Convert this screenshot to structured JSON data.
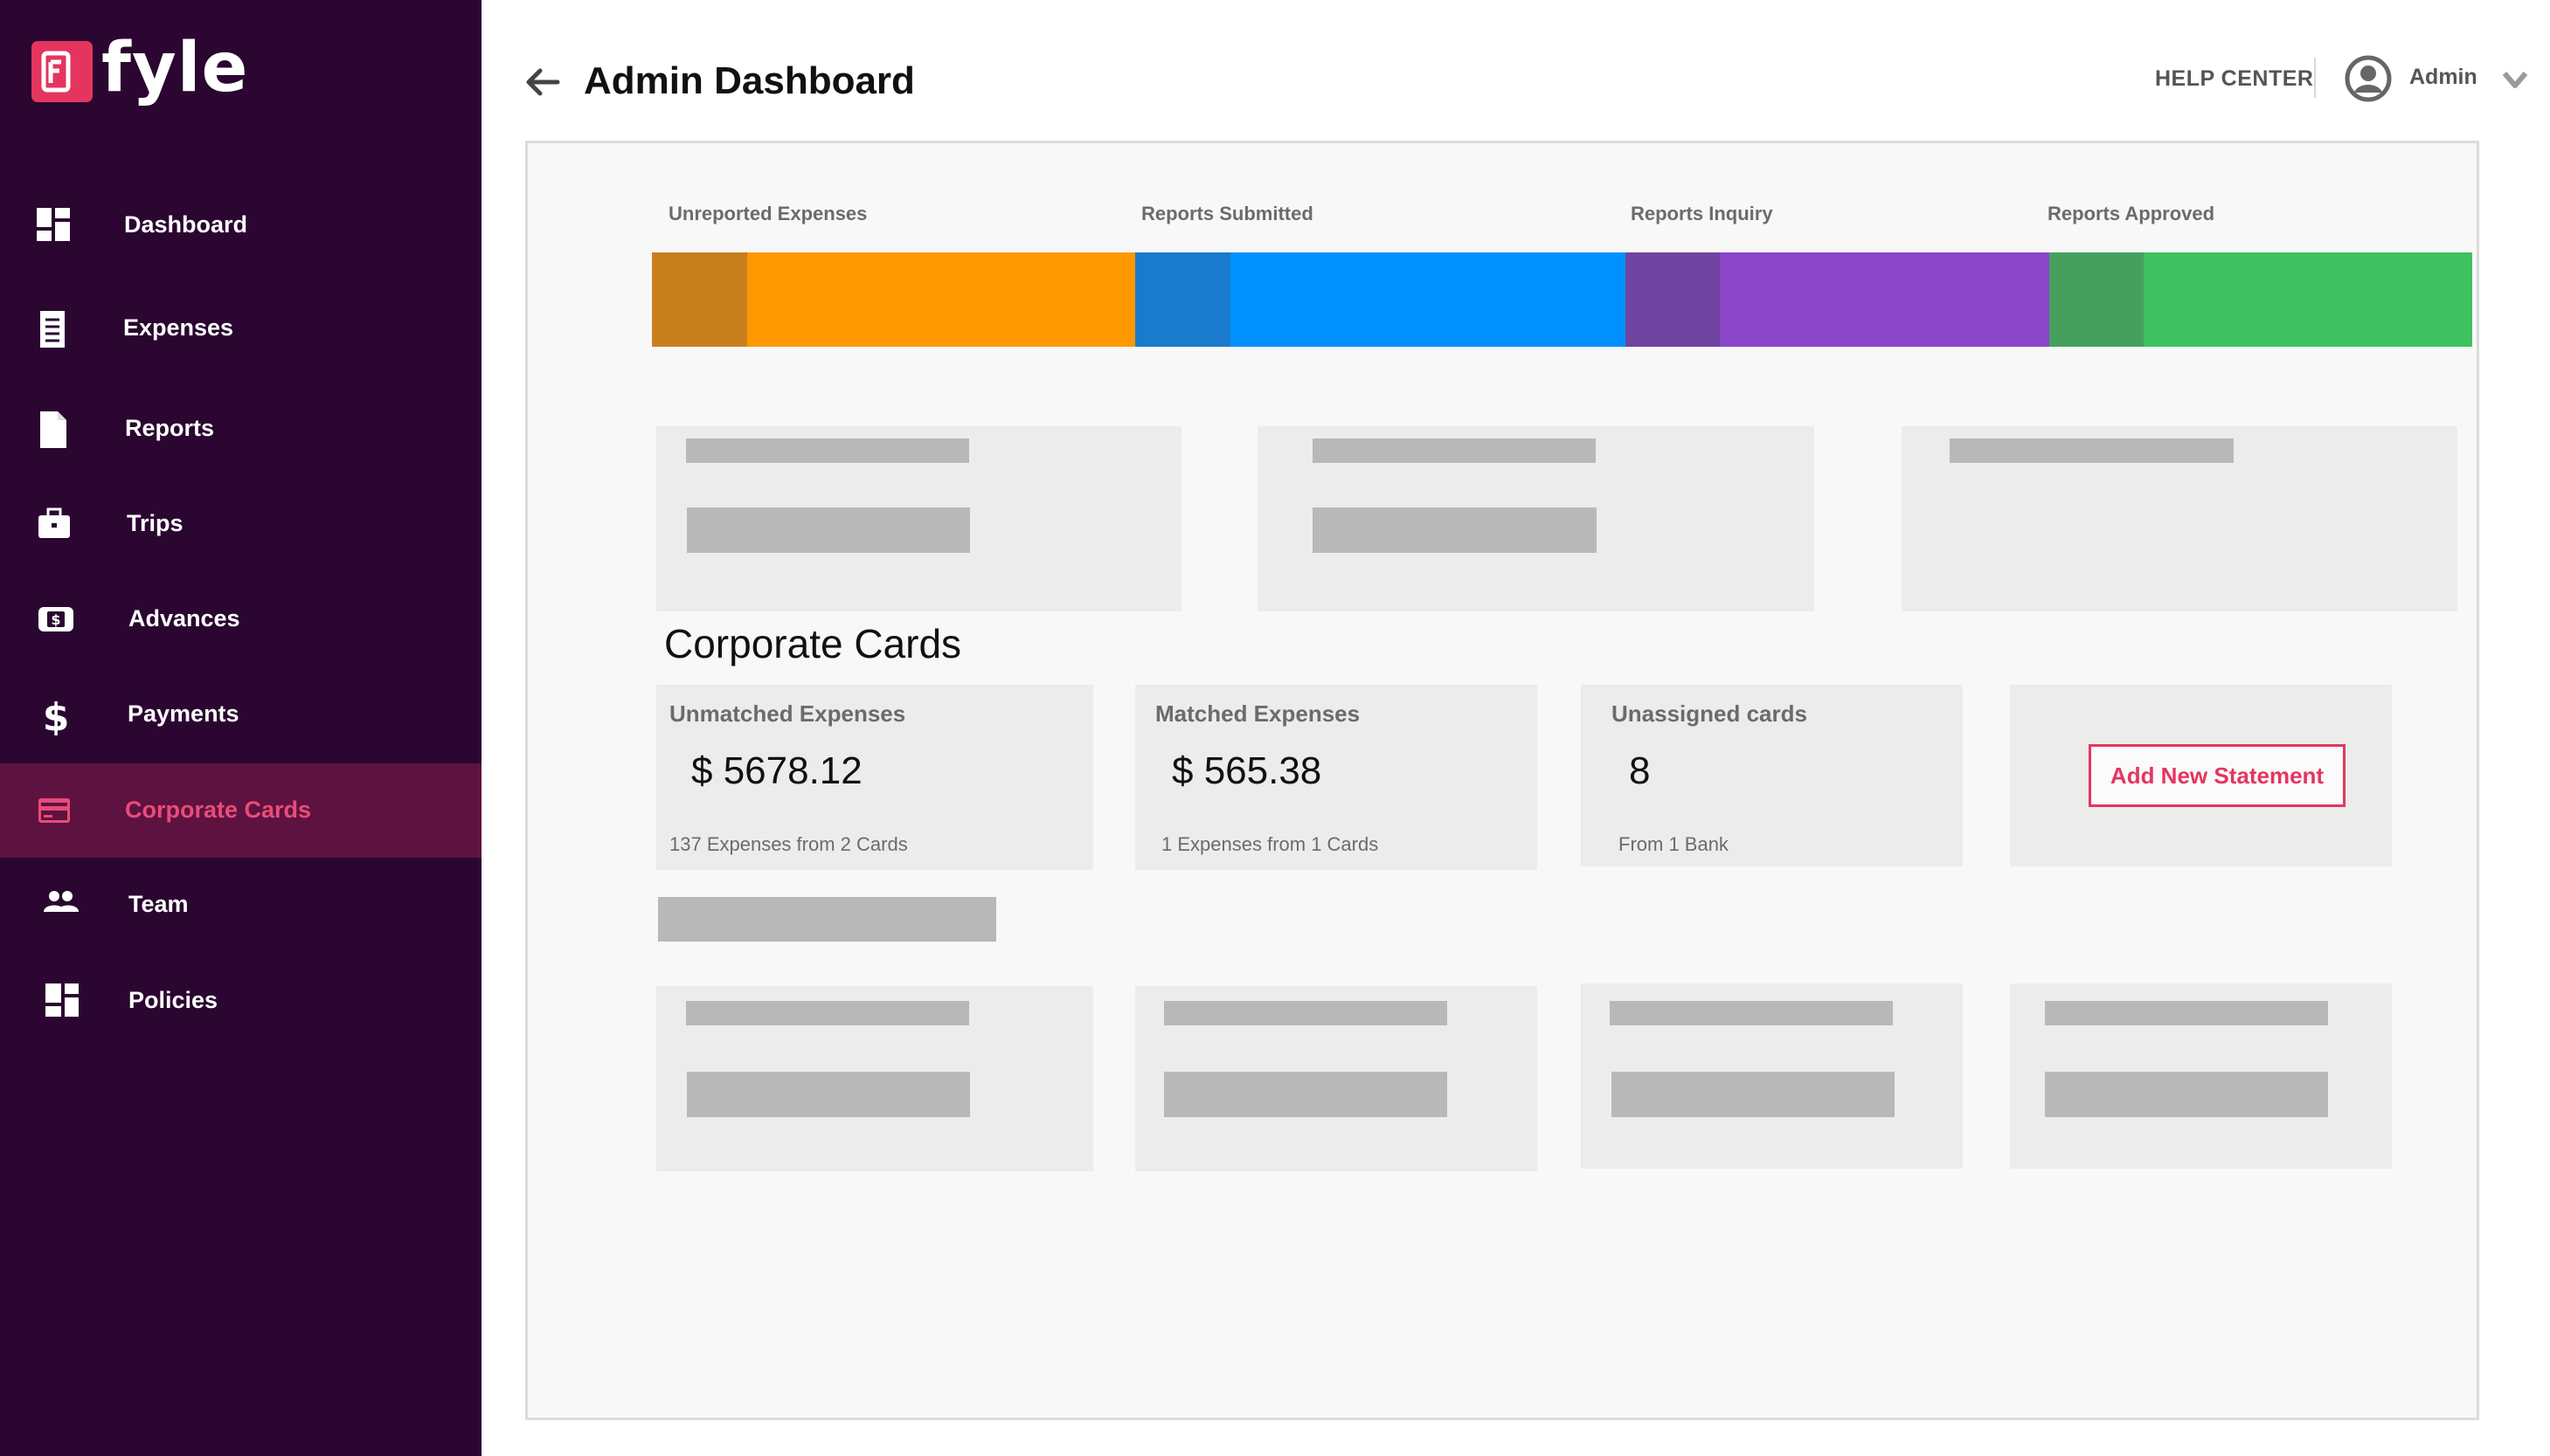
{
  "brand": {
    "name": "fyle",
    "logo_letter": "F",
    "accent": "#e5355f",
    "sidebar_bg": "#2a0630",
    "active_bg": "#5e1240"
  },
  "sidebar": {
    "items": [
      {
        "label": "Dashboard",
        "icon": "dashboard-icon"
      },
      {
        "label": "Expenses",
        "icon": "receipt-icon"
      },
      {
        "label": "Reports",
        "icon": "document-icon"
      },
      {
        "label": "Trips",
        "icon": "briefcase-icon"
      },
      {
        "label": "Advances",
        "icon": "cash-icon"
      },
      {
        "label": "Payments",
        "icon": "dollar-icon"
      },
      {
        "label": "Corporate Cards",
        "icon": "credit-card-icon",
        "active": true
      },
      {
        "label": "Team",
        "icon": "people-icon"
      },
      {
        "label": "Policies",
        "icon": "policies-icon"
      }
    ]
  },
  "header": {
    "title": "Admin Dashboard",
    "help_center": "HELP CENTER",
    "user": "Admin"
  },
  "pipeline": {
    "stages": [
      {
        "label": "Unreported Expenses",
        "color": "#ff9800",
        "dark": "#c8801f"
      },
      {
        "label": "Reports Submitted",
        "color": "#0090ff",
        "dark": "#1a7acc"
      },
      {
        "label": "Reports Inquiry",
        "color": "#8a45c8",
        "dark": "#6f43a0"
      },
      {
        "label": "Reports Approved",
        "color": "#3ec160",
        "dark": "#45a060"
      }
    ]
  },
  "corporate_cards": {
    "title": "Corporate Cards",
    "cards": [
      {
        "title": "Unmatched Expenses",
        "value": "$ 5678.12",
        "sub": "137 Expenses from 2 Cards"
      },
      {
        "title": "Matched Expenses",
        "value": "$ 565.38",
        "sub": "1 Expenses from 1 Cards"
      },
      {
        "title": "Unassigned cards",
        "value": "8",
        "sub": "From 1 Bank"
      }
    ],
    "add_statement": "Add New Statement"
  }
}
